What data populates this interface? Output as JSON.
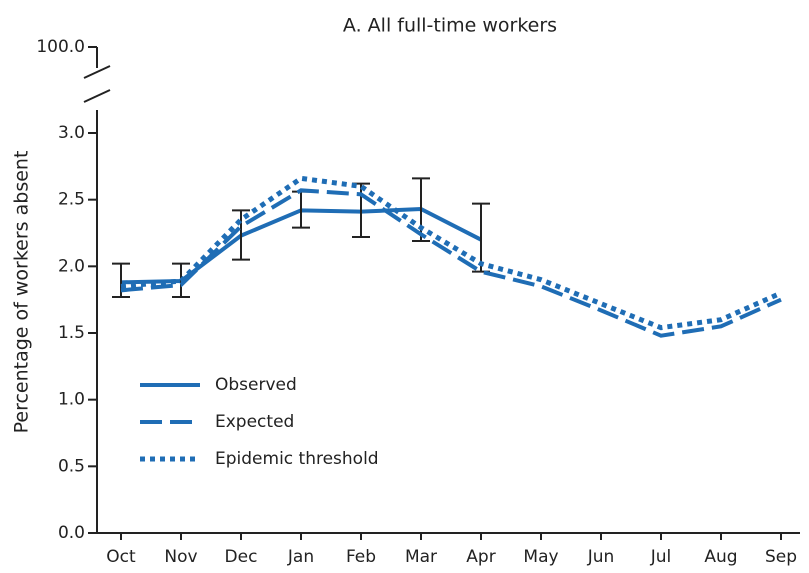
{
  "chart_data": {
    "type": "line",
    "title": "A. All full-time workers",
    "y_label": "Percentage of workers absent",
    "categories": [
      "Oct",
      "Nov",
      "Dec",
      "Jan",
      "Feb",
      "Mar",
      "Apr",
      "May",
      "Jun",
      "Jul",
      "Aug",
      "Sep"
    ],
    "series": [
      {
        "name": "Observed",
        "color": "#1f6db5",
        "dash": "solid",
        "values": [
          1.88,
          1.89,
          2.23,
          2.42,
          2.41,
          2.43,
          2.2,
          null,
          null,
          null,
          null,
          null
        ],
        "ci_low": [
          1.77,
          1.77,
          2.05,
          2.29,
          2.22,
          2.19,
          1.96,
          null,
          null,
          null,
          null,
          null
        ],
        "ci_high": [
          2.02,
          2.02,
          2.42,
          2.56,
          2.62,
          2.66,
          2.47,
          null,
          null,
          null,
          null,
          null
        ]
      },
      {
        "name": "Expected",
        "color": "#1f6db5",
        "dash": "dashed",
        "values": [
          1.82,
          1.86,
          2.3,
          2.57,
          2.54,
          2.24,
          1.96,
          1.85,
          1.67,
          1.48,
          1.55,
          1.75
        ]
      },
      {
        "name": "Epidemic threshold",
        "color": "#1f6db5",
        "dash": "dotted",
        "values": [
          1.85,
          1.89,
          2.35,
          2.66,
          2.6,
          2.29,
          2.02,
          1.9,
          1.72,
          1.54,
          1.6,
          1.8
        ]
      }
    ],
    "ylim": [
      0,
      3
    ],
    "yticks": [
      {
        "value": 0,
        "label": "0.0"
      },
      {
        "value": 0.5,
        "label": "0.5"
      },
      {
        "value": 1,
        "label": "1.0"
      },
      {
        "value": 1.5,
        "label": "1.5"
      },
      {
        "value": 2,
        "label": "2.0"
      },
      {
        "value": 2.5,
        "label": "2.5"
      },
      {
        "value": 3,
        "label": "3.0"
      }
    ],
    "break_tick": {
      "value": 100,
      "label": "100.0"
    },
    "legend": "left"
  }
}
